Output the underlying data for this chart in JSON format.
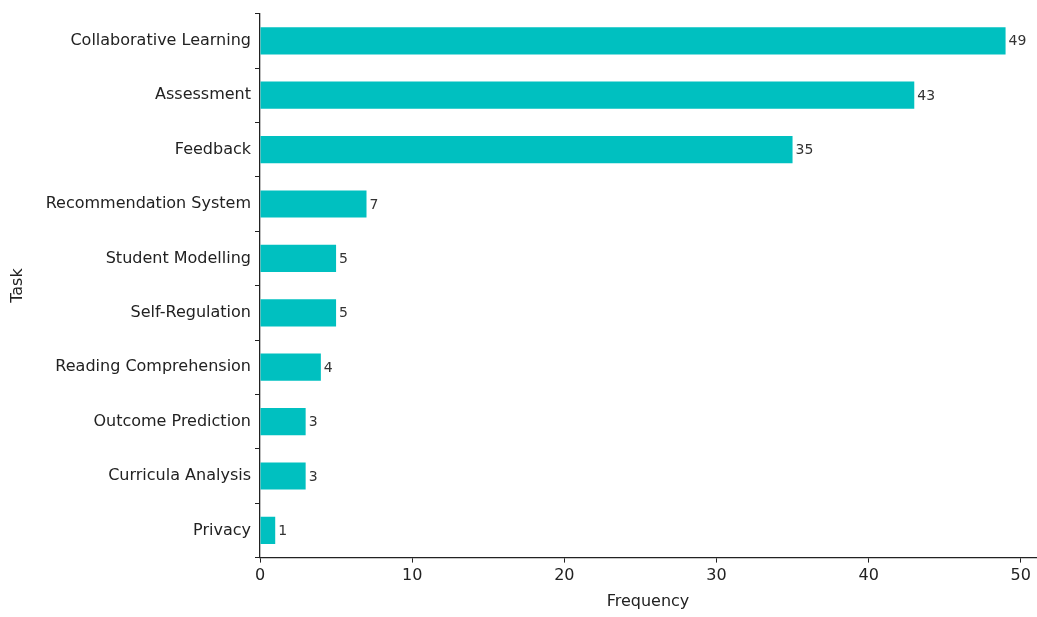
{
  "chart_data": {
    "type": "bar",
    "orientation": "horizontal",
    "xlabel": "Frequency",
    "ylabel": "Task",
    "categories": [
      "Collaborative Learning",
      "Assessment",
      "Feedback",
      "Recommendation System",
      "Student Modelling",
      "Self-Regulation",
      "Reading Comprehension",
      "Outcome Prediction",
      "Curricula Analysis",
      "Privacy"
    ],
    "values": [
      49,
      43,
      35,
      7,
      5,
      5,
      4,
      3,
      3,
      1
    ],
    "color": "#00c0c0",
    "xlim": [
      0,
      51
    ],
    "xticks": [
      0,
      10,
      20,
      30,
      40,
      50
    ],
    "data_labels": true,
    "grid": false,
    "legend": false
  }
}
